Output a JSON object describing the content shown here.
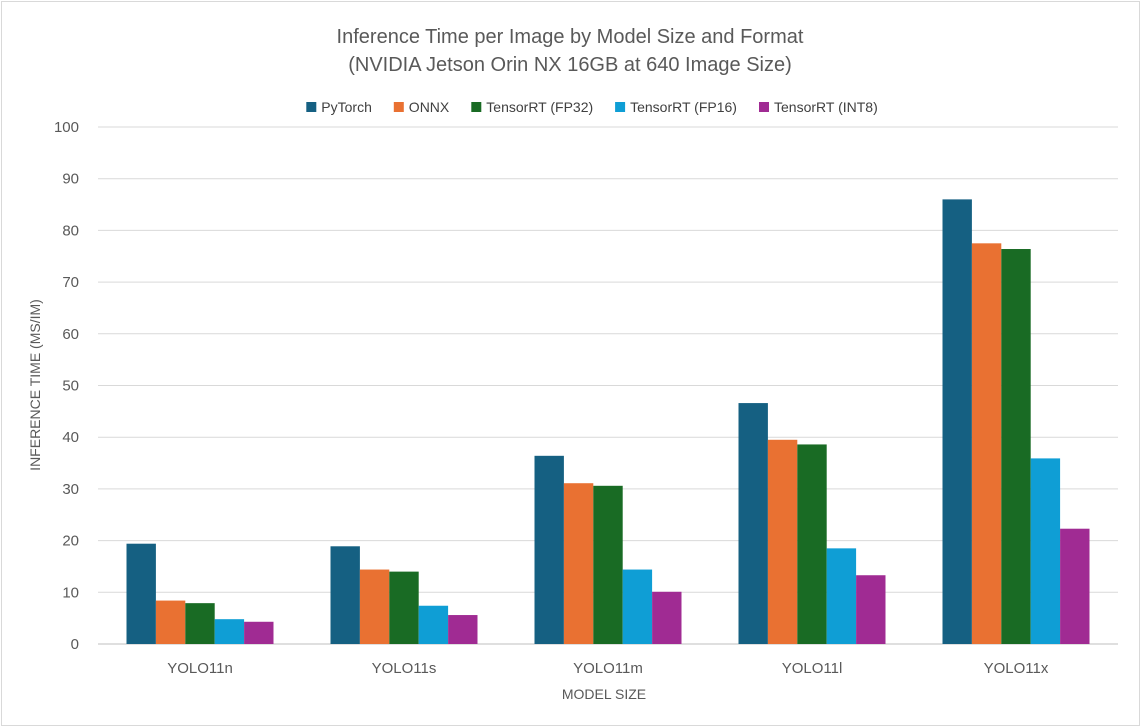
{
  "chart_data": {
    "type": "bar",
    "title": "Inference Time per Image by Model Size and Format",
    "subtitle": "(NVIDIA Jetson Orin NX 16GB at 640 Image Size)",
    "xlabel": "MODEL SIZE",
    "ylabel": "INFERENCE TIME (MS/IM)",
    "ylim": [
      0,
      100
    ],
    "yticks": [
      0,
      10,
      20,
      30,
      40,
      50,
      60,
      70,
      80,
      90,
      100
    ],
    "grid": true,
    "legend_position": "top",
    "categories": [
      "YOLO11n",
      "YOLO11s",
      "YOLO11m",
      "YOLO11l",
      "YOLO11x"
    ],
    "series": [
      {
        "name": "PyTorch",
        "color": "#156082",
        "values": [
          19.4,
          18.9,
          36.4,
          46.6,
          86.0
        ]
      },
      {
        "name": "ONNX",
        "color": "#E97132",
        "values": [
          8.4,
          14.4,
          31.1,
          39.5,
          77.5
        ]
      },
      {
        "name": "TensorRT (FP32)",
        "color": "#196B24",
        "values": [
          7.9,
          14.0,
          30.6,
          38.6,
          76.4
        ]
      },
      {
        "name": "TensorRT (FP16)",
        "color": "#0F9ED5",
        "values": [
          4.8,
          7.4,
          14.4,
          18.5,
          35.9
        ]
      },
      {
        "name": "TensorRT (INT8)",
        "color": "#A02B93",
        "values": [
          4.3,
          5.6,
          10.1,
          13.3,
          22.3
        ]
      }
    ]
  }
}
